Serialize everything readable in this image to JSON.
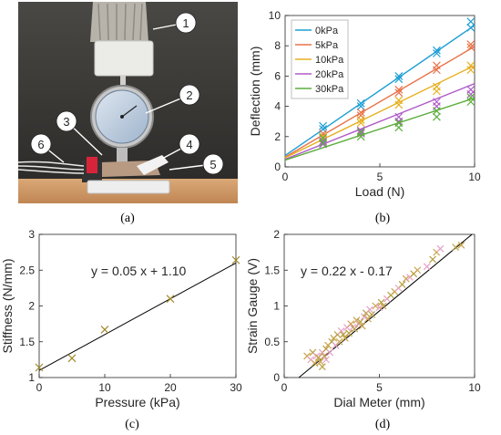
{
  "panel_labels": {
    "a": "(a)",
    "b": "(b)",
    "c": "(c)",
    "d": "(d)"
  },
  "photo": {
    "callouts": [
      "1",
      "2",
      "3",
      "4",
      "5",
      "6"
    ]
  },
  "chart_data": [
    {
      "id": "b",
      "type": "scatter",
      "xlabel": "Load (N)",
      "ylabel": "Deflection (mm)",
      "xlim": [
        0,
        10
      ],
      "ylim": [
        0,
        10
      ],
      "xticks": [
        0,
        5,
        10
      ],
      "yticks": [
        0,
        2,
        4,
        6,
        8,
        10
      ],
      "grid": false,
      "legend": "top-left",
      "series": [
        {
          "name": "0kPa",
          "color": "#1f9fd4",
          "fit": {
            "slope": 0.86,
            "intercept": 0.75
          },
          "points": [
            [
              2,
              2.5
            ],
            [
              2,
              2.7
            ],
            [
              4,
              4.0
            ],
            [
              4,
              4.2
            ],
            [
              6,
              5.8
            ],
            [
              6,
              6.0
            ],
            [
              8,
              7.5
            ],
            [
              8,
              7.7
            ],
            [
              9.8,
              9.2
            ],
            [
              9.8,
              9.6
            ]
          ]
        },
        {
          "name": "5kPa",
          "color": "#e8734a",
          "fit": {
            "slope": 0.73,
            "intercept": 0.65
          },
          "points": [
            [
              2,
              2.0
            ],
            [
              2,
              2.2
            ],
            [
              4,
              3.4
            ],
            [
              4,
              3.6
            ],
            [
              6,
              4.9
            ],
            [
              6,
              5.1
            ],
            [
              8,
              6.4
            ],
            [
              8,
              6.7
            ],
            [
              9.8,
              7.9
            ],
            [
              9.8,
              8.1
            ]
          ]
        },
        {
          "name": "10kPa",
          "color": "#e6b020",
          "fit": {
            "slope": 0.61,
            "intercept": 0.6
          },
          "points": [
            [
              2,
              1.9
            ],
            [
              2,
              2.0
            ],
            [
              4,
              2.9
            ],
            [
              4,
              3.1
            ],
            [
              6,
              4.1
            ],
            [
              6,
              4.4
            ],
            [
              8,
              5.0
            ],
            [
              8,
              5.3
            ],
            [
              9.8,
              6.4
            ],
            [
              9.8,
              6.7
            ]
          ]
        },
        {
          "name": "20kPa",
          "color": "#b05cc8",
          "fit": {
            "slope": 0.5,
            "intercept": 0.5
          },
          "points": [
            [
              2,
              1.5
            ],
            [
              2,
              1.7
            ],
            [
              4,
              2.2
            ],
            [
              4,
              2.4
            ],
            [
              6,
              3.0
            ],
            [
              6,
              3.3
            ],
            [
              8,
              4.0
            ],
            [
              8,
              4.3
            ],
            [
              9.8,
              4.8
            ],
            [
              9.8,
              5.1
            ]
          ]
        },
        {
          "name": "30kPa",
          "color": "#5cae3c",
          "fit": {
            "slope": 0.41,
            "intercept": 0.45
          },
          "points": [
            [
              2,
              1.6
            ],
            [
              2,
              1.9
            ],
            [
              4,
              2.0
            ],
            [
              4,
              2.3
            ],
            [
              6,
              2.6
            ],
            [
              6,
              2.9
            ],
            [
              8,
              3.3
            ],
            [
              8,
              3.7
            ],
            [
              9.8,
              4.3
            ],
            [
              9.8,
              4.6
            ]
          ]
        }
      ]
    },
    {
      "id": "c",
      "type": "scatter",
      "xlabel": "Pressure (kPa)",
      "ylabel": "Stiffness (N/mm)",
      "xlim": [
        0,
        30
      ],
      "ylim": [
        1,
        3
      ],
      "xticks": [
        0,
        10,
        20,
        30
      ],
      "yticks": [
        1,
        1.5,
        2,
        2.5,
        3
      ],
      "equation": "y = 0.05 x + 1.10",
      "marker_color": "#a08a2a",
      "fit": {
        "slope": 0.05,
        "intercept": 1.1
      },
      "x": [
        0,
        5,
        10,
        20,
        30
      ],
      "y": [
        1.14,
        1.27,
        1.67,
        2.1,
        2.64
      ]
    },
    {
      "id": "d",
      "type": "scatter",
      "xlabel": "Dial Meter (mm)",
      "ylabel": "Strain Gauge (V)",
      "xlim": [
        0,
        10
      ],
      "ylim": [
        0,
        2
      ],
      "xticks": [
        0,
        5,
        10
      ],
      "yticks": [
        0,
        0.5,
        1,
        1.5,
        2
      ],
      "equation": "y = 0.22 x - 0.17",
      "marker_colors": [
        "#c9a24a",
        "#e8a0c8",
        "#b8a040"
      ],
      "fit": {
        "slope": 0.22,
        "intercept": -0.17
      },
      "x": [
        1.2,
        1.4,
        1.5,
        1.6,
        1.7,
        1.8,
        1.9,
        2.0,
        2.0,
        2.1,
        2.2,
        2.2,
        2.3,
        2.4,
        2.5,
        2.6,
        2.7,
        2.8,
        2.9,
        3.0,
        3.1,
        3.2,
        3.3,
        3.4,
        3.5,
        3.6,
        3.7,
        3.8,
        3.9,
        4.0,
        4.1,
        4.2,
        4.3,
        4.4,
        4.5,
        4.6,
        4.8,
        5.0,
        5.1,
        5.2,
        5.4,
        5.6,
        5.8,
        6.0,
        6.2,
        6.4,
        6.6,
        6.8,
        7.0,
        7.5,
        7.8,
        8.0,
        8.2,
        9.0,
        9.3
      ],
      "y": [
        0.3,
        0.25,
        0.35,
        0.2,
        0.3,
        0.28,
        0.22,
        0.35,
        0.15,
        0.3,
        0.25,
        0.4,
        0.45,
        0.35,
        0.5,
        0.55,
        0.45,
        0.6,
        0.5,
        0.65,
        0.6,
        0.55,
        0.7,
        0.62,
        0.75,
        0.7,
        0.68,
        0.8,
        0.75,
        0.78,
        0.72,
        0.85,
        0.9,
        0.82,
        0.95,
        0.88,
        1.0,
        0.98,
        1.05,
        1.0,
        1.1,
        1.15,
        1.2,
        1.25,
        1.3,
        1.38,
        1.4,
        1.45,
        1.5,
        1.55,
        1.65,
        1.75,
        1.8,
        1.82,
        1.85
      ]
    }
  ]
}
